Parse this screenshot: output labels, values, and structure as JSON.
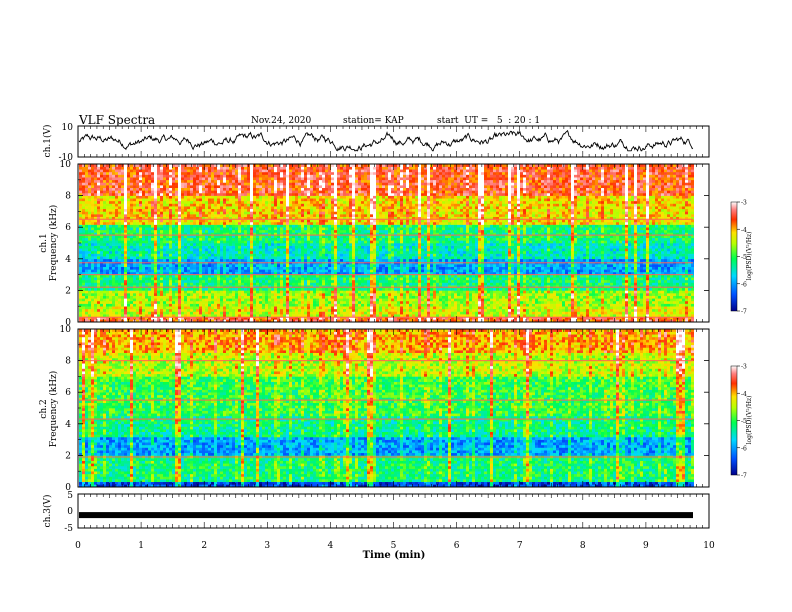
{
  "header": {
    "title": "VLF Spectra",
    "date": "Nov.24, 2020",
    "station": "station= KAP",
    "start": "start  UT =   5  : 20 : 1"
  },
  "chart_data": [
    {
      "type": "line",
      "panel": "ch1-waveform",
      "ylabel": "ch.1(V)",
      "ylim": [
        -10,
        10
      ],
      "yticks": [
        "10",
        "-10"
      ],
      "x_range_min": [
        0,
        9.83
      ],
      "values_note_min_max": [
        -6,
        7
      ]
    },
    {
      "type": "heatmap",
      "panel": "ch1-spectrogram",
      "ylabel": "ch.1\nFrequency (kHz)",
      "ylabel_line1": "ch.1",
      "ylabel_line2": "Frequency (kHz)",
      "ylim": [
        0,
        10
      ],
      "yticks": [
        0,
        2,
        4,
        6,
        8,
        10
      ],
      "colorbar": {
        "label": "log(PSD)(V²/Hz)",
        "range": [
          -7,
          -3
        ],
        "ticks": [
          "-3",
          "-4",
          "-5",
          "-6",
          "-7"
        ],
        "colors": [
          "#0000a0",
          "#0060ff",
          "#00e0ff",
          "#00ff60",
          "#c0ff00",
          "#ffe000",
          "#ff4000",
          "#ffffff"
        ]
      },
      "bands": [
        {
          "f": [
            0.0,
            0.4
          ],
          "level": -3.6
        },
        {
          "f": [
            0.4,
            1.0
          ],
          "level": -4.4
        },
        {
          "f": [
            1.0,
            2.0
          ],
          "level": -4.6
        },
        {
          "f": [
            2.0,
            3.0
          ],
          "level": -5.2
        },
        {
          "f": [
            3.0,
            4.0
          ],
          "level": -6.0
        },
        {
          "f": [
            4.0,
            5.0
          ],
          "level": -5.5
        },
        {
          "f": [
            5.0,
            6.2
          ],
          "level": -5.2
        },
        {
          "f": [
            6.2,
            8.0
          ],
          "level": -4.2
        },
        {
          "f": [
            8.0,
            10.0
          ],
          "level": -3.6
        }
      ],
      "lines_khz": [
        6.5,
        5.5,
        3.75,
        3.0,
        2.2,
        0.3
      ]
    },
    {
      "type": "heatmap",
      "panel": "ch2-spectrogram",
      "ylabel_line1": "ch.2",
      "ylabel_line2": "Frequency (kHz)",
      "ylim": [
        0,
        10
      ],
      "yticks": [
        0,
        2,
        4,
        6,
        8,
        10
      ],
      "colorbar": {
        "label": "log(PSD)(V²/Hz)",
        "range": [
          -7,
          -3
        ],
        "ticks": [
          "-3",
          "-4",
          "-5",
          "-6",
          "-7"
        ]
      },
      "bands": [
        {
          "f": [
            0.0,
            0.3
          ],
          "level": -6.5
        },
        {
          "f": [
            0.3,
            2.0
          ],
          "level": -5.2
        },
        {
          "f": [
            2.0,
            3.2
          ],
          "level": -6.0
        },
        {
          "f": [
            3.2,
            4.5
          ],
          "level": -5.3
        },
        {
          "f": [
            4.5,
            7.0
          ],
          "level": -5.0
        },
        {
          "f": [
            7.0,
            8.5
          ],
          "level": -4.5
        },
        {
          "f": [
            8.5,
            10.0
          ],
          "level": -4.0
        }
      ],
      "lines_khz": [
        8.0,
        5.5,
        4.3,
        1.9
      ]
    },
    {
      "type": "line",
      "panel": "ch3-waveform",
      "ylabel": "ch.3(V)",
      "ylim": [
        -5,
        5
      ],
      "yticks": [
        "5",
        "0",
        "-5"
      ],
      "x_range_min": [
        0,
        9.83
      ],
      "level_V": -1.2
    }
  ],
  "x_axis": {
    "label": "Time (min)",
    "ticks": [
      "0",
      "1",
      "2",
      "3",
      "4",
      "5",
      "6",
      "7",
      "8",
      "9",
      "10"
    ],
    "range": [
      0,
      10
    ]
  }
}
